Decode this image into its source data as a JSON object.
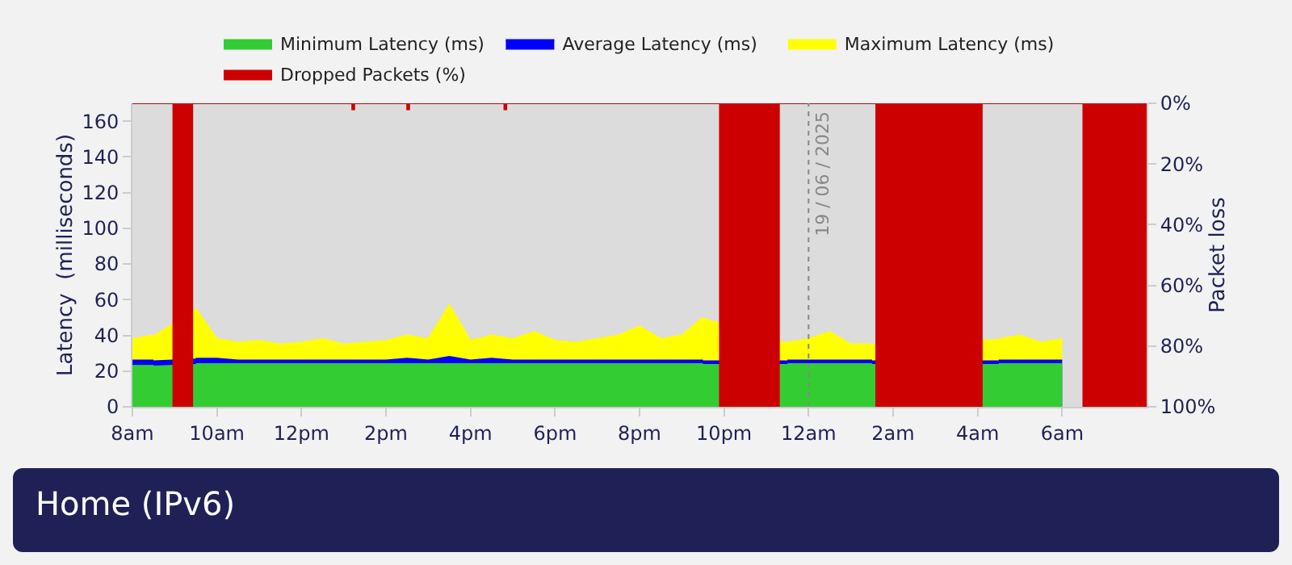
{
  "chart_data": {
    "type": "area",
    "title": "Home (IPv6)",
    "ylabel": "Latency  (milliseconds)",
    "y2label": "Packet loss",
    "x": [
      "2025-06-18T08:00",
      "2025-06-18T08:30",
      "2025-06-18T09:00",
      "2025-06-18T09:30",
      "2025-06-18T10:00",
      "2025-06-18T10:30",
      "2025-06-18T11:00",
      "2025-06-18T11:30",
      "2025-06-18T12:00",
      "2025-06-18T12:30",
      "2025-06-18T13:00",
      "2025-06-18T13:30",
      "2025-06-18T14:00",
      "2025-06-18T14:30",
      "2025-06-18T15:00",
      "2025-06-18T15:30",
      "2025-06-18T16:00",
      "2025-06-18T16:30",
      "2025-06-18T17:00",
      "2025-06-18T17:30",
      "2025-06-18T18:00",
      "2025-06-18T18:30",
      "2025-06-18T19:00",
      "2025-06-18T19:30",
      "2025-06-18T20:00",
      "2025-06-18T20:30",
      "2025-06-18T21:00",
      "2025-06-18T21:30",
      "2025-06-18T22:00",
      "2025-06-18T22:30",
      "2025-06-18T23:00",
      "2025-06-18T23:30",
      "2025-06-19T00:00",
      "2025-06-19T00:30",
      "2025-06-19T01:00",
      "2025-06-19T01:30",
      "2025-06-19T02:00",
      "2025-06-19T02:30",
      "2025-06-19T03:00",
      "2025-06-19T03:30",
      "2025-06-19T04:00",
      "2025-06-19T04:30",
      "2025-06-19T05:00",
      "2025-06-19T05:30",
      "2025-06-19T06:00"
    ],
    "series": [
      {
        "name": "Minimum Latency (ms)",
        "color": "#33cc33",
        "values": [
          23,
          23,
          null,
          24,
          24,
          24,
          24,
          24,
          24,
          24,
          24,
          24,
          24,
          24,
          24,
          24,
          24,
          24,
          24,
          24,
          24,
          24,
          24,
          24,
          24,
          24,
          24,
          24,
          null,
          null,
          null,
          24,
          24,
          24,
          24,
          24,
          null,
          null,
          null,
          null,
          null,
          24,
          24,
          24,
          24
        ]
      },
      {
        "name": "Average Latency (ms)",
        "color": "#0000ff",
        "values": [
          26,
          26,
          null,
          27,
          27,
          26,
          26,
          26,
          26,
          26,
          26,
          26,
          26,
          27,
          26,
          28,
          26,
          27,
          26,
          26,
          26,
          26,
          26,
          26,
          26,
          26,
          26,
          26,
          null,
          null,
          null,
          26,
          26,
          26,
          26,
          26,
          null,
          null,
          null,
          null,
          null,
          26,
          26,
          26,
          26
        ]
      },
      {
        "name": "Maximum Latency (ms)",
        "color": "#ffff00",
        "values": [
          38,
          40,
          null,
          55,
          38,
          36,
          37,
          35,
          36,
          38,
          35,
          36,
          37,
          40,
          38,
          57,
          37,
          40,
          38,
          42,
          37,
          36,
          38,
          40,
          45,
          38,
          40,
          50,
          null,
          null,
          null,
          36,
          38,
          42,
          35,
          35,
          null,
          null,
          null,
          null,
          null,
          38,
          40,
          36,
          38
        ]
      },
      {
        "name": "Dropped Packets (%)",
        "color": "#cc0000",
        "axis": "y2",
        "x": [
          "2025-06-18T08:00",
          "2025-06-18T08:58",
          "2025-06-18T08:58",
          "2025-06-18T09:25",
          "2025-06-18T09:25",
          "2025-06-18T13:12",
          "2025-06-18T13:12",
          "2025-06-18T13:15",
          "2025-06-18T13:15",
          "2025-06-18T14:30",
          "2025-06-18T14:30",
          "2025-06-18T14:33",
          "2025-06-18T14:33",
          "2025-06-18T16:48",
          "2025-06-18T16:48",
          "2025-06-18T16:51",
          "2025-06-18T16:51",
          "2025-06-18T21:54",
          "2025-06-18T21:54",
          "2025-06-18T23:18",
          "2025-06-18T23:18",
          "2025-06-19T01:36",
          "2025-06-19T01:36",
          "2025-06-19T04:06",
          "2025-06-19T04:06",
          "2025-06-19T06:30",
          "2025-06-19T06:30",
          "2025-06-19T08:00"
        ],
        "values": [
          0,
          0,
          100,
          100,
          0,
          0,
          2,
          2,
          0,
          0,
          2,
          2,
          0,
          0,
          2,
          2,
          0,
          0,
          100,
          100,
          0,
          0,
          100,
          100,
          0,
          0,
          100,
          100
        ]
      }
    ],
    "xlim": [
      "2025-06-18T08:00",
      "2025-06-19T08:00"
    ],
    "xticks": [
      {
        "value": "2025-06-18T08:00",
        "label": "8am"
      },
      {
        "value": "2025-06-18T10:00",
        "label": "10am"
      },
      {
        "value": "2025-06-18T12:00",
        "label": "12pm"
      },
      {
        "value": "2025-06-18T14:00",
        "label": "2pm"
      },
      {
        "value": "2025-06-18T16:00",
        "label": "4pm"
      },
      {
        "value": "2025-06-18T18:00",
        "label": "6pm"
      },
      {
        "value": "2025-06-18T20:00",
        "label": "8pm"
      },
      {
        "value": "2025-06-18T22:00",
        "label": "10pm"
      },
      {
        "value": "2025-06-19T00:00",
        "label": "12am"
      },
      {
        "value": "2025-06-19T02:00",
        "label": "2am"
      },
      {
        "value": "2025-06-19T04:00",
        "label": "4am"
      },
      {
        "value": "2025-06-19T06:00",
        "label": "6am"
      }
    ],
    "ylim": [
      0,
      170
    ],
    "yticks": [
      0,
      20,
      40,
      60,
      80,
      100,
      120,
      140,
      160
    ],
    "y2lim": [
      100,
      0
    ],
    "y2ticks": [
      {
        "value": 0,
        "label": "0%"
      },
      {
        "value": 20,
        "label": "20%"
      },
      {
        "value": 40,
        "label": "40%"
      },
      {
        "value": 60,
        "label": "60%"
      },
      {
        "value": 80,
        "label": "80%"
      },
      {
        "value": 100,
        "label": "100%"
      }
    ],
    "ref_lines": [
      {
        "axis": "x",
        "value": "2025-06-19",
        "label": "19 / 06 / 2025",
        "color": "#888888",
        "line_style": "dotted"
      }
    ],
    "legend": "top",
    "grid": false
  }
}
